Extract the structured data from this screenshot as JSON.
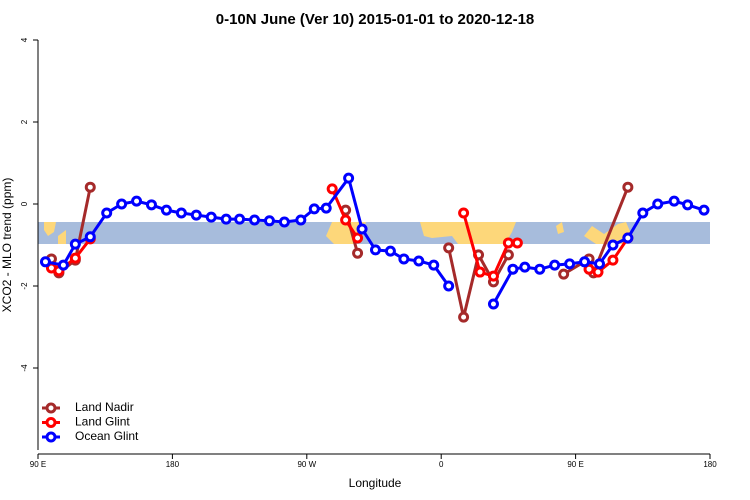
{
  "chart_data": {
    "type": "line",
    "title": "0-10N June (Ver 10)   2015-01-01 to 2020-12-18",
    "x_label": "Longitude",
    "y_label": "XCO2 - MLO trend (ppm)",
    "xlim": [
      90,
      540
    ],
    "ylim": [
      -6,
      4
    ],
    "xticks": [
      {
        "value": 90,
        "label": "90 E"
      },
      180,
      {
        "value": 270,
        "label": "90 W"
      },
      {
        "value": 360,
        "label": "0"
      },
      {
        "value": 450,
        "label": "90 E"
      },
      {
        "value": 540,
        "label": "180"
      }
    ],
    "yticks": [
      -4,
      -2,
      0,
      2,
      4
    ],
    "legend": "bottom-left",
    "series": [
      {
        "name": "Land Nadir",
        "color": "#a52a2a",
        "x": [
          99,
          104,
          115,
          125,
          null,
          296,
          304,
          null,
          365,
          375,
          385,
          395,
          405,
          null,
          442,
          459,
          462,
          485
        ],
        "values": [
          -1.34,
          -1.68,
          -1.37,
          0.41,
          null,
          -0.15,
          -1.2,
          null,
          -1.07,
          -2.76,
          -1.24,
          -1.9,
          -1.24,
          null,
          -1.71,
          -1.34,
          -1.68,
          0.41
        ]
      },
      {
        "name": "Land Glint",
        "color": "#ff0000",
        "x": [
          99,
          104,
          115,
          125,
          null,
          287,
          296,
          304,
          null,
          375,
          386,
          395,
          405,
          411,
          null,
          459,
          465,
          475,
          485
        ],
        "values": [
          -1.56,
          -1.63,
          -1.32,
          -0.85,
          null,
          0.37,
          -0.39,
          -0.83,
          null,
          -0.22,
          -1.66,
          -1.76,
          -0.95,
          -0.95,
          null,
          -1.59,
          -1.66,
          -1.37,
          -0.83
        ]
      },
      {
        "name": "Ocean Glint",
        "color": "#0000ff",
        "x": [
          95,
          107,
          115,
          125,
          136,
          146,
          156,
          166,
          176,
          186,
          196,
          206,
          216,
          225,
          235,
          245,
          255,
          266,
          275,
          283,
          298,
          307,
          316,
          326,
          335,
          345,
          355,
          365,
          null,
          395,
          408,
          416,
          426,
          436,
          446,
          456,
          466,
          475,
          485,
          495,
          505,
          516,
          525,
          536
        ],
        "values": [
          -1.41,
          -1.49,
          -0.98,
          -0.8,
          -0.22,
          0,
          0.07,
          -0.02,
          -0.15,
          -0.22,
          -0.27,
          -0.32,
          -0.37,
          -0.37,
          -0.39,
          -0.41,
          -0.44,
          -0.39,
          -0.12,
          -0.1,
          0.63,
          -0.61,
          -1.12,
          -1.15,
          -1.34,
          -1.39,
          -1.49,
          -2.0,
          null,
          -2.44,
          -1.59,
          -1.54,
          -1.59,
          -1.49,
          -1.46,
          -1.41,
          -1.46,
          -1.0,
          -0.83,
          -0.22,
          0,
          0.07,
          -0.02,
          -0.15
        ]
      }
    ]
  }
}
